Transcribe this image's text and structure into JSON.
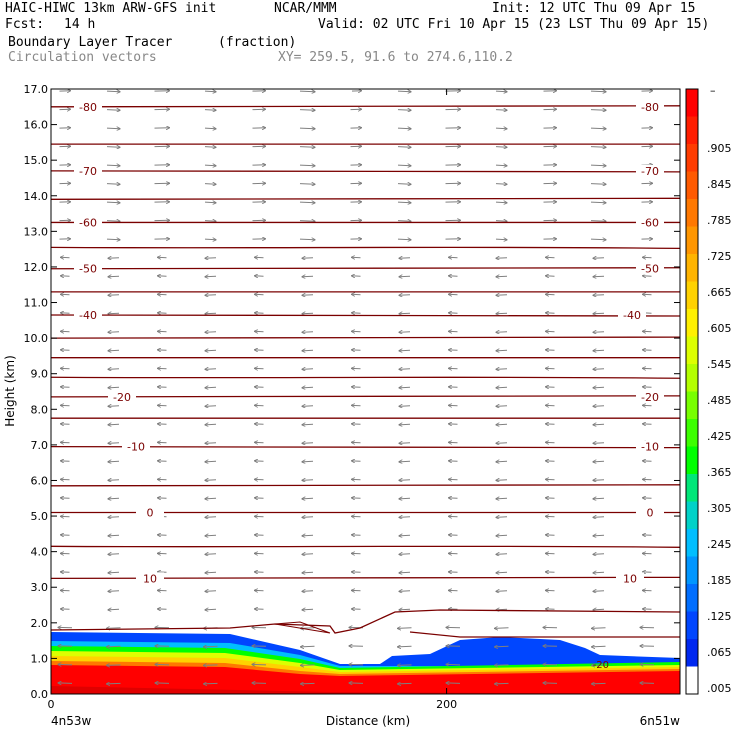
{
  "header": {
    "model": "HAIC-HIWC 13km ARW-GFS init",
    "org": "NCAR/MMM",
    "init": "Init: 12 UTC Thu 09 Apr 15",
    "fcst_label": "Fcst:",
    "fcst_value": "14 h",
    "valid": "Valid: 02 UTC Fri 10 Apr 15 (23 LST Thu 09 Apr 15)",
    "field": "Boundary Layer Tracer",
    "field_units": "(fraction)",
    "overlay": "Circulation vectors",
    "xy": "XY= 259.5, 91.6 to 274.6,110.2"
  },
  "chart_data": {
    "type": "cross-section",
    "ylabel": "Height (km)",
    "xlabel": "Distance (km)",
    "ylim": [
      0,
      17
    ],
    "xlim": [
      0,
      318
    ],
    "y_ticks": [
      "0.0",
      "1.0",
      "2.0",
      "3.0",
      "4.0",
      "5.0",
      "6.0",
      "7.0",
      "8.0",
      "9.0",
      "10.0",
      "11.0",
      "12.0",
      "13.0",
      "14.0",
      "15.0",
      "16.0",
      "17.0"
    ],
    "x_ticks": [
      {
        "value": 0,
        "label": "0"
      },
      {
        "value": 200,
        "label": "200"
      }
    ],
    "x_end_labels": {
      "left": "4n53w",
      "right": "6n51w"
    },
    "temperature_contours": [
      {
        "value": -80,
        "label": "-80",
        "y": 16.5
      },
      {
        "value": -75,
        "label": "",
        "y": 15.45
      },
      {
        "value": -70,
        "label": "-70",
        "y": 14.7
      },
      {
        "value": -65,
        "label": "",
        "y": 13.9
      },
      {
        "value": -60,
        "label": "-60",
        "y": 13.25
      },
      {
        "value": -55,
        "label": "",
        "y": 12.55
      },
      {
        "value": -50,
        "label": "-50",
        "y": 11.95
      },
      {
        "value": -45,
        "label": "",
        "y": 11.3
      },
      {
        "value": -40,
        "label": "-40",
        "y": 10.65
      },
      {
        "value": -35,
        "label": "",
        "y": 10.0
      },
      {
        "value": -30,
        "label": "",
        "y": 9.45
      },
      {
        "value": -25,
        "label": "",
        "y": 8.9
      },
      {
        "value": -20,
        "label": "-20",
        "y": 8.35
      },
      {
        "value": -15,
        "label": "",
        "y": 7.75
      },
      {
        "value": -10,
        "label": "-10",
        "y": 6.95
      },
      {
        "value": -5,
        "label": "",
        "y": 5.85
      },
      {
        "value": 0,
        "label": "0",
        "y": 5.1
      },
      {
        "value": 5,
        "label": "",
        "y": 4.15
      },
      {
        "value": 10,
        "label": "10",
        "y": 3.25
      }
    ],
    "contour_labels_extra": [
      {
        "label": "-20",
        "x": 278,
        "y": 0.85
      }
    ],
    "colorbar": {
      "labels": [
        ".905",
        ".845",
        ".785",
        ".725",
        ".665",
        ".605",
        ".545",
        ".485",
        ".425",
        ".365",
        ".305",
        ".245",
        ".185",
        ".125",
        ".065",
        ".005"
      ],
      "colors": [
        "#ff0000",
        "#ff1e00",
        "#ff3c00",
        "#ff5a00",
        "#ff7800",
        "#ff9600",
        "#ffb400",
        "#ffd200",
        "#fff000",
        "#ddff00",
        "#b4ff00",
        "#78ff00",
        "#3cff00",
        "#00ff00",
        "#00e678",
        "#00d2c8",
        "#00beff",
        "#0096ff",
        "#006eff",
        "#0046ff",
        "#0028f0",
        "#ffffff"
      ],
      "top_label": "–"
    }
  }
}
